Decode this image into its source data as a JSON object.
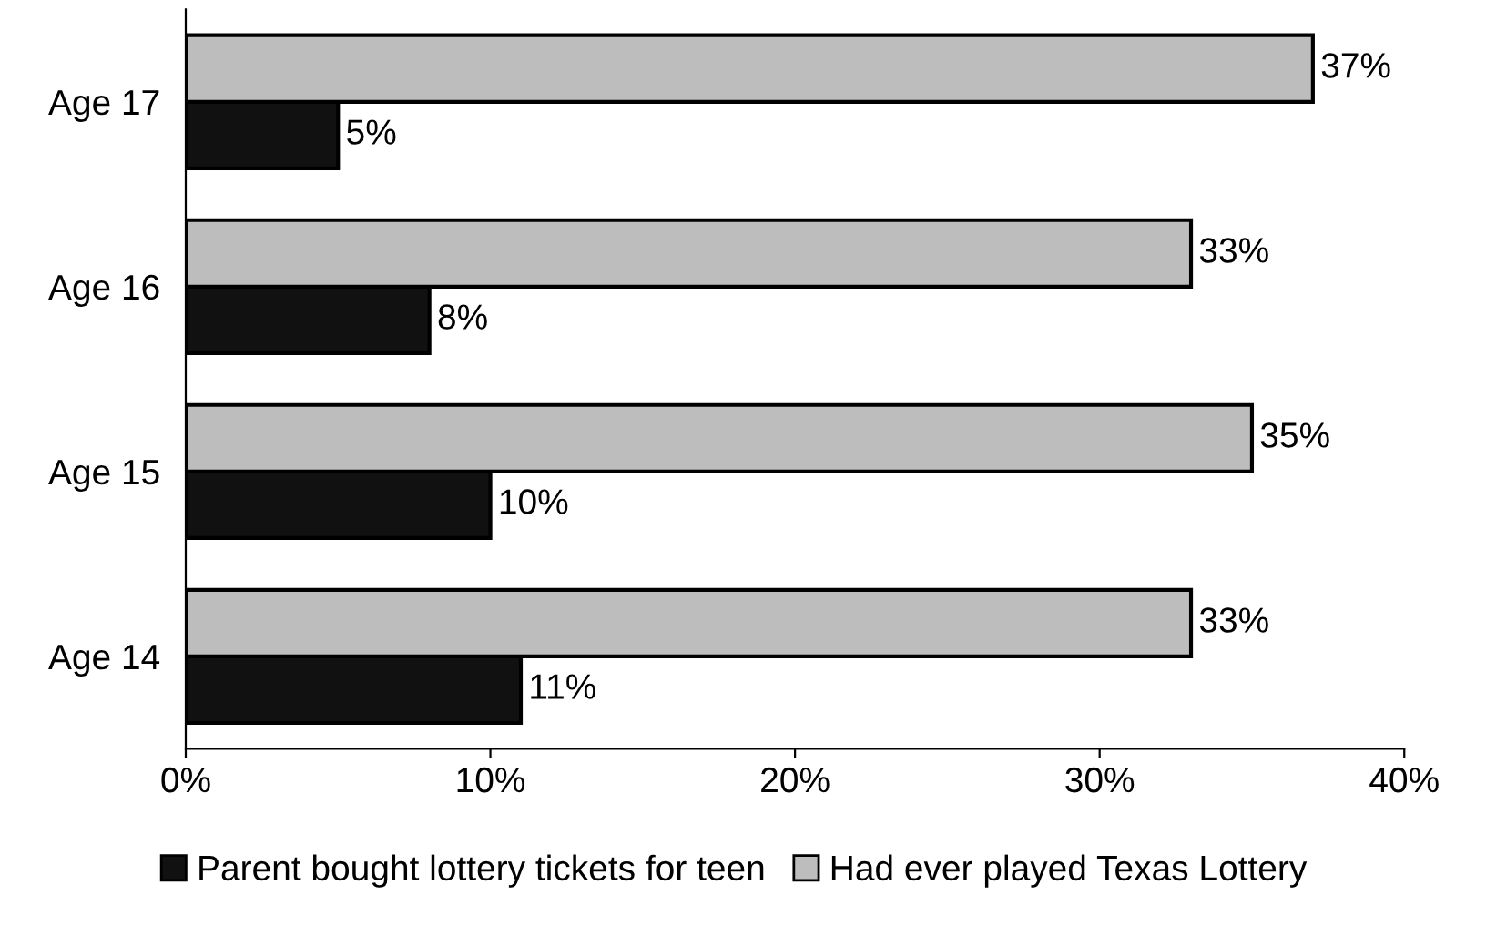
{
  "chart_data": {
    "type": "bar",
    "orientation": "horizontal",
    "categories": [
      "Age 17",
      "Age 16",
      "Age 15",
      "Age 14"
    ],
    "series": [
      {
        "name": "Parent bought lottery tickets for teen",
        "color": "#111111",
        "values": [
          5,
          8,
          10,
          11
        ],
        "value_labels": [
          "5%",
          "8%",
          "10%",
          "11%"
        ]
      },
      {
        "name": "Had ever played Texas Lottery",
        "color": "#bdbdbd",
        "values": [
          37,
          33,
          35,
          33
        ],
        "value_labels": [
          "37%",
          "33%",
          "35%",
          "33%"
        ]
      }
    ],
    "xlim": [
      0,
      40
    ],
    "xticks": [
      {
        "value": 0,
        "label": "0%"
      },
      {
        "value": 10,
        "label": "10%"
      },
      {
        "value": 20,
        "label": "20%"
      },
      {
        "value": 30,
        "label": "30%"
      },
      {
        "value": 40,
        "label": "40%"
      }
    ],
    "grid": false,
    "legend": "bottom"
  }
}
